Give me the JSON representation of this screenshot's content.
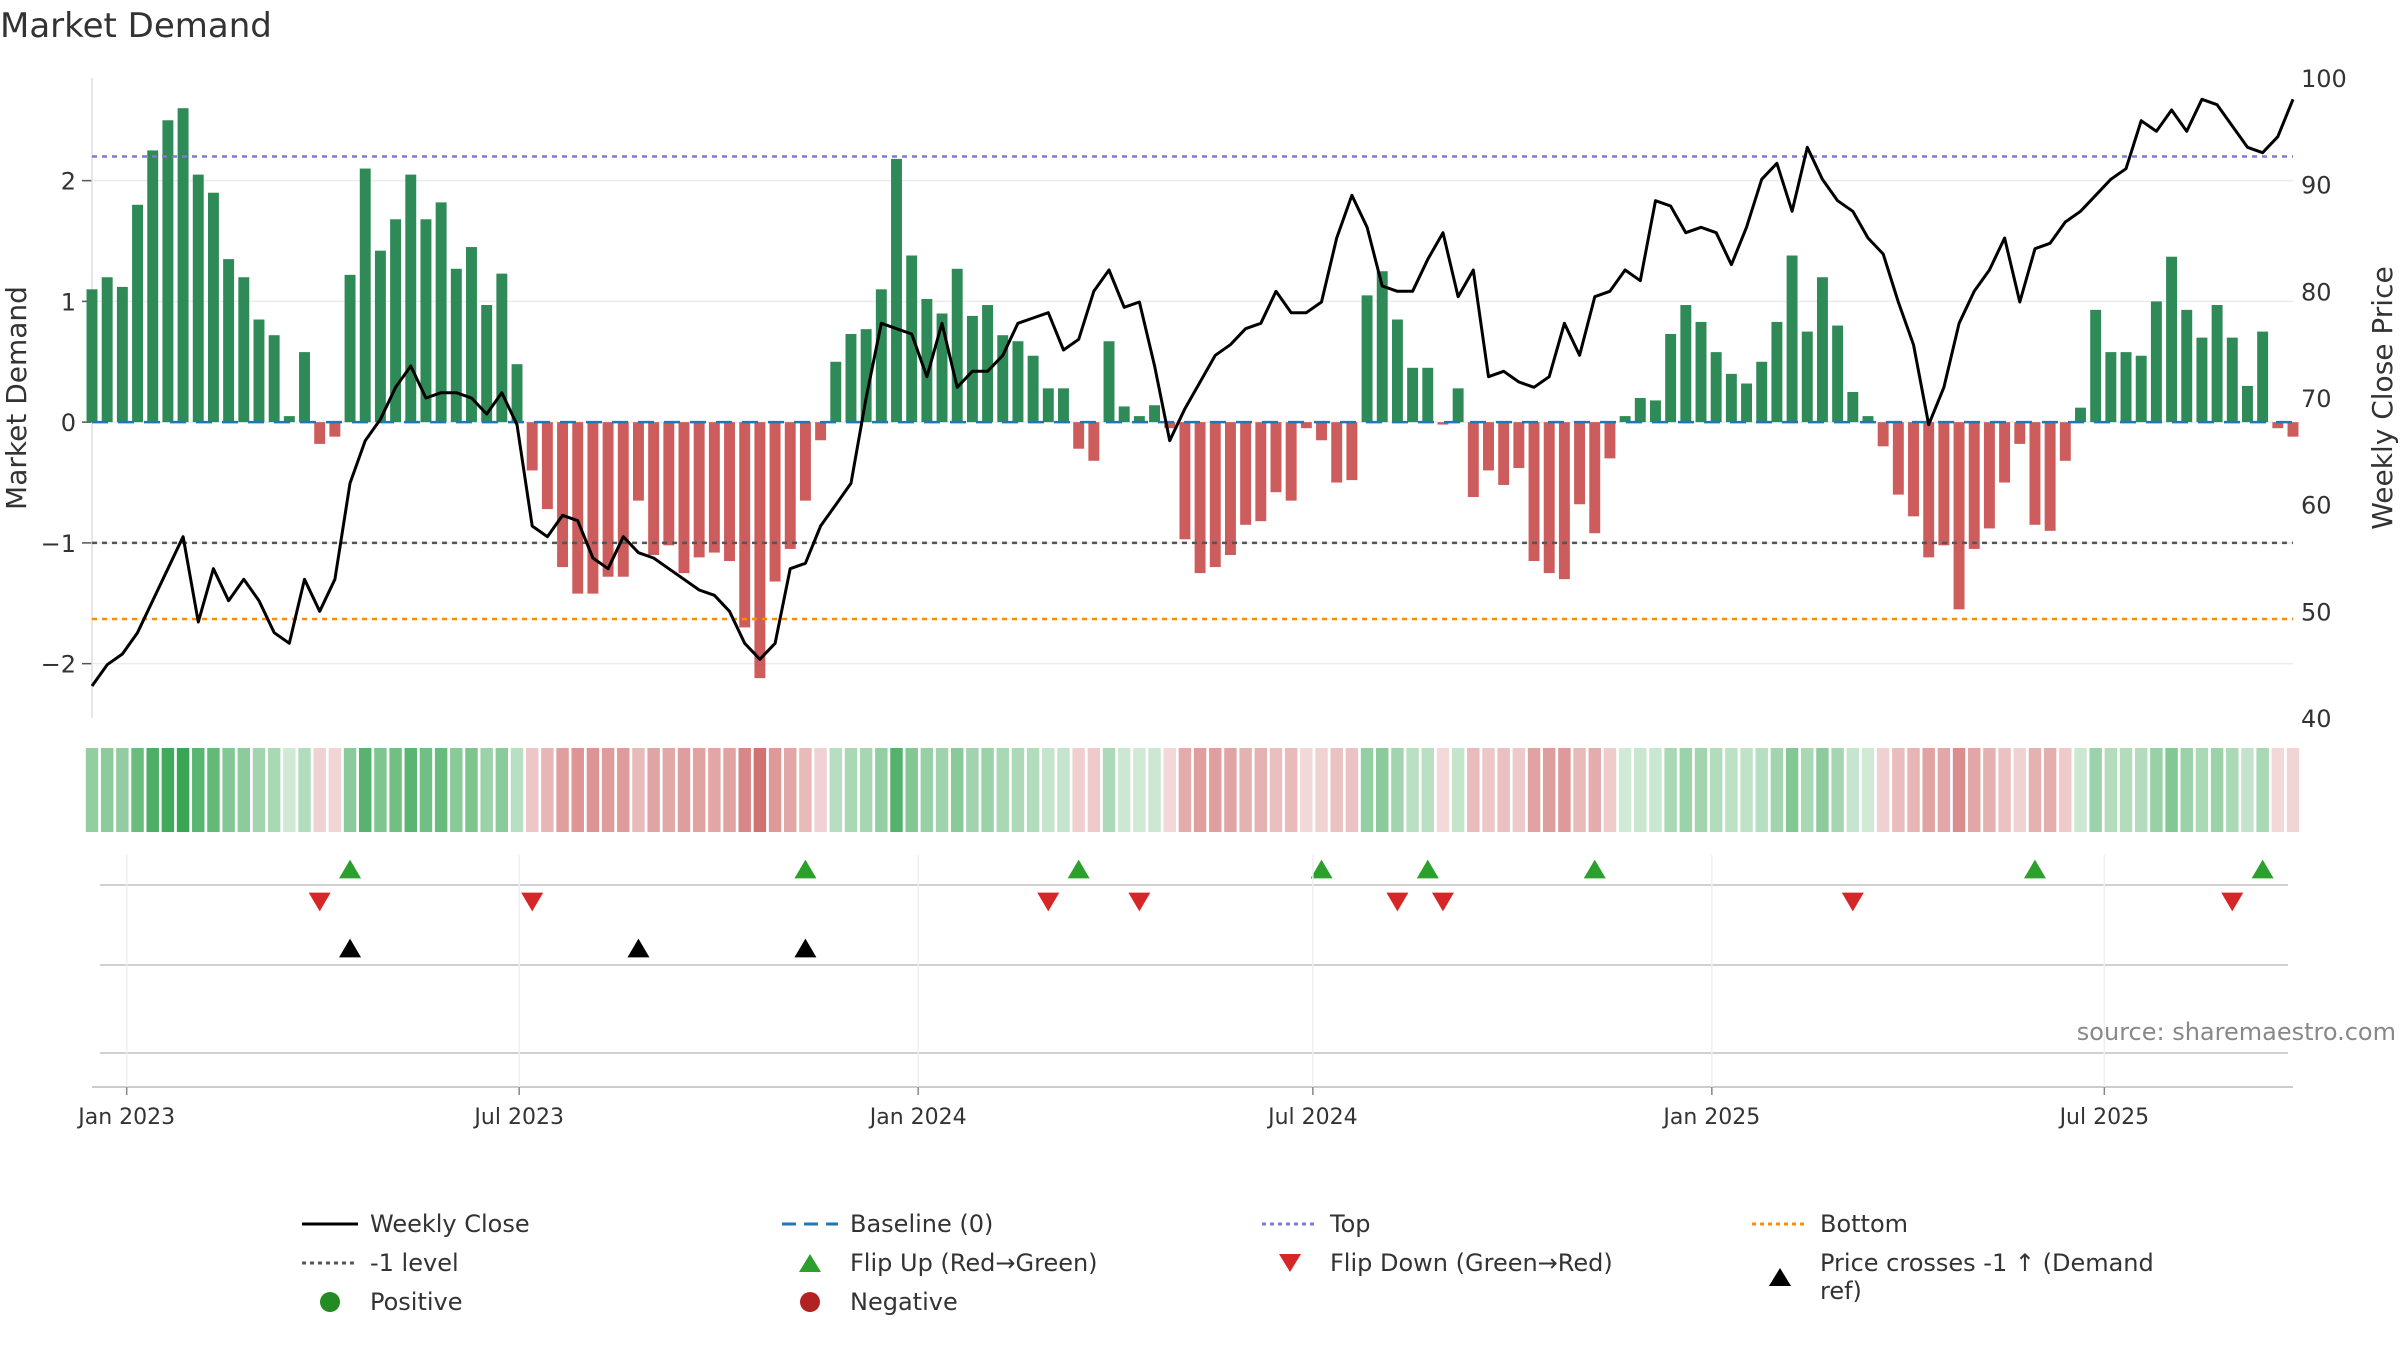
{
  "title": "Market Demand",
  "source": "source: sharemaestro.com",
  "colors": {
    "positive": "#2e8b57",
    "negative": "#cd5c5c",
    "close": "#000000",
    "baseline": "#1f77b4",
    "top": "#7b7bd4",
    "bottom": "#ff8c00",
    "minus1": "#555555",
    "flip_up": "#2ca02c",
    "flip_down": "#d62728",
    "cross": "#000000"
  },
  "chart_data": {
    "type": "bar",
    "title": "Market Demand",
    "ylabel": "Market Demand",
    "y2label": "Weekly Close Price",
    "ylim": [
      -2.45,
      2.85
    ],
    "y2lim": [
      40,
      100
    ],
    "yticks": [
      -2,
      -1,
      0,
      1,
      2
    ],
    "ytick_labels": [
      "−2",
      "−1",
      "0",
      "1",
      "2"
    ],
    "y2ticks": [
      40,
      50,
      60,
      70,
      80,
      90,
      100
    ],
    "x_start": "2022-12-16",
    "x_end": "2025-09-26",
    "x_ticks": [
      {
        "date": "2023-01-01",
        "label": "Jan 2023"
      },
      {
        "date": "2023-07-01",
        "label": "Jul 2023"
      },
      {
        "date": "2024-01-01",
        "label": "Jan 2024"
      },
      {
        "date": "2024-07-01",
        "label": "Jul 2024"
      },
      {
        "date": "2025-01-01",
        "label": "Jan 2025"
      },
      {
        "date": "2025-07-01",
        "label": "Jul 2025"
      }
    ],
    "first_week": "2022-12-16",
    "demand": [
      1.1,
      1.2,
      1.12,
      1.8,
      2.25,
      2.5,
      2.6,
      2.05,
      1.9,
      1.35,
      1.2,
      0.85,
      0.72,
      0.05,
      0.58,
      -0.18,
      -0.12,
      1.22,
      2.1,
      1.42,
      1.68,
      2.05,
      1.68,
      1.82,
      1.27,
      1.45,
      0.97,
      1.23,
      0.48,
      -0.4,
      -0.72,
      -1.2,
      -1.42,
      -1.42,
      -1.28,
      -1.28,
      -0.65,
      -1.1,
      -1.02,
      -1.25,
      -1.12,
      -1.08,
      -1.15,
      -1.7,
      -2.12,
      -1.32,
      -1.05,
      -0.65,
      -0.15,
      0.5,
      0.73,
      0.77,
      1.1,
      2.18,
      1.38,
      1.02,
      0.9,
      1.27,
      0.88,
      0.97,
      0.72,
      0.67,
      0.55,
      0.28,
      0.28,
      -0.22,
      -0.32,
      0.67,
      0.13,
      0.05,
      0.14,
      -0.05,
      -0.97,
      -1.25,
      -1.2,
      -1.1,
      -0.85,
      -0.82,
      -0.58,
      -0.65,
      -0.05,
      -0.15,
      -0.5,
      -0.48,
      1.05,
      1.25,
      0.85,
      0.45,
      0.45,
      -0.02,
      0.28,
      -0.62,
      -0.4,
      -0.52,
      -0.38,
      -1.15,
      -1.25,
      -1.3,
      -0.68,
      -0.92,
      -0.3,
      0.05,
      0.2,
      0.18,
      0.73,
      0.97,
      0.83,
      0.58,
      0.4,
      0.32,
      0.5,
      0.83,
      1.38,
      0.75,
      1.2,
      0.8,
      0.25,
      0.05,
      -0.2,
      -0.6,
      -0.78,
      -1.12,
      -1.02,
      -1.55,
      -1.05,
      -0.88,
      -0.5,
      -0.18,
      -0.85,
      -0.9,
      -0.32,
      0.12,
      0.93,
      0.58,
      0.58,
      0.55,
      1.0,
      1.37,
      0.93,
      0.7,
      0.97,
      0.7,
      0.3,
      0.75,
      -0.05,
      -0.12
    ],
    "close": [
      43,
      45,
      46,
      48,
      51,
      54,
      57,
      49,
      54,
      51,
      53,
      51,
      48,
      47,
      53,
      50,
      53,
      62,
      66,
      68,
      71,
      73,
      70,
      70.5,
      70.5,
      70,
      68.5,
      70.5,
      67.5,
      58,
      57,
      59,
      58.5,
      55,
      54,
      57,
      55.5,
      55,
      54,
      53,
      52,
      51.5,
      50,
      47,
      45.5,
      47,
      54,
      54.5,
      58,
      60,
      62,
      70,
      77,
      76.5,
      76,
      72,
      77,
      71,
      72.5,
      72.5,
      74,
      77,
      77.5,
      78,
      74.5,
      75.5,
      80,
      82,
      78.5,
      79,
      73,
      66,
      69,
      71.5,
      74,
      75,
      76.5,
      77,
      80,
      78,
      78,
      79,
      85,
      89,
      86,
      80.5,
      80,
      80,
      83,
      85.5,
      79.5,
      82,
      72,
      72.5,
      71.5,
      71,
      72,
      77,
      74,
      79.5,
      80,
      82,
      81,
      88.5,
      88,
      85.5,
      86,
      85.5,
      82.5,
      86,
      90.5,
      92,
      87.5,
      93.5,
      90.5,
      88.5,
      87.5,
      85,
      83.5,
      79,
      75,
      67.5,
      71,
      77,
      80,
      82,
      85,
      79,
      84,
      84.5,
      86.5,
      87.5,
      89,
      90.5,
      91.5,
      96,
      95,
      97,
      95,
      98,
      97.5,
      95.5,
      93.5,
      93,
      94.5,
      98
    ],
    "top_level": 2.2,
    "bottom_level": -1.63,
    "minus1_level": -1.0,
    "baseline": 0,
    "flip_up_idx": [
      17,
      47,
      65,
      81,
      88,
      99,
      128,
      143
    ],
    "flip_down_idx": [
      15,
      29,
      63,
      69,
      86,
      89,
      116,
      141
    ],
    "cross_idx": [
      17,
      36,
      47
    ]
  },
  "legend": {
    "items": [
      {
        "label": "Weekly Close",
        "kind": "line",
        "color": "#000000",
        "dash": ""
      },
      {
        "label": "Baseline (0)",
        "kind": "line",
        "color": "#1f77b4",
        "dash": "14,8"
      },
      {
        "label": "Top",
        "kind": "line",
        "color": "#7b7bd4",
        "dash": "4,4"
      },
      {
        "label": "Bottom",
        "kind": "line",
        "color": "#ff8c00",
        "dash": "4,4"
      },
      {
        "label": "-1 level",
        "kind": "line",
        "color": "#555555",
        "dash": "4,4"
      },
      {
        "label": "Flip Up (Red→Green)",
        "kind": "tri-up",
        "color": "#2ca02c"
      },
      {
        "label": "Flip Down (Green→Red)",
        "kind": "tri-down",
        "color": "#d62728"
      },
      {
        "label": "Price crosses -1 ↑ (Demand ref)",
        "kind": "tri-up",
        "color": "#000000"
      },
      {
        "label": "Positive",
        "kind": "dot",
        "color": "#228b22"
      },
      {
        "label": "Negative",
        "kind": "dot",
        "color": "#b22222"
      }
    ]
  }
}
